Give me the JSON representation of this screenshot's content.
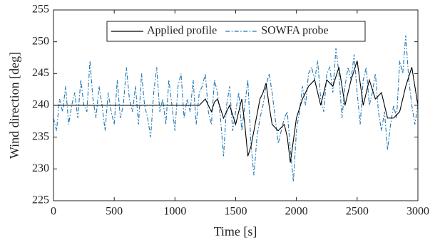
{
  "chart_data": {
    "type": "line",
    "xlabel": "Time [s]",
    "ylabel": "Wind direction [deg]",
    "xlim": [
      0,
      3000
    ],
    "xticks": [
      0,
      500,
      1000,
      1500,
      2000,
      2500,
      3000
    ],
    "ylim": [
      225,
      255
    ],
    "yticks": [
      225,
      230,
      235,
      240,
      245,
      250,
      255
    ],
    "legend": "top",
    "x": [
      0,
      25,
      50,
      75,
      100,
      125,
      150,
      175,
      200,
      225,
      250,
      275,
      300,
      325,
      350,
      375,
      400,
      425,
      450,
      475,
      500,
      525,
      550,
      575,
      600,
      625,
      650,
      675,
      700,
      725,
      750,
      775,
      800,
      825,
      850,
      875,
      900,
      925,
      950,
      975,
      1000,
      1025,
      1050,
      1075,
      1100,
      1125,
      1150,
      1175,
      1200,
      1225,
      1250,
      1275,
      1300,
      1325,
      1350,
      1375,
      1400,
      1425,
      1450,
      1475,
      1500,
      1525,
      1550,
      1575,
      1600,
      1625,
      1650,
      1675,
      1700,
      1725,
      1750,
      1775,
      1800,
      1825,
      1850,
      1875,
      1900,
      1925,
      1950,
      1975,
      2000,
      2025,
      2050,
      2075,
      2100,
      2125,
      2150,
      2175,
      2200,
      2225,
      2250,
      2275,
      2300,
      2325,
      2350,
      2375,
      2400,
      2425,
      2450,
      2475,
      2500,
      2525,
      2550,
      2575,
      2600,
      2625,
      2650,
      2675,
      2700,
      2725,
      2750,
      2775,
      2800,
      2825,
      2850,
      2875,
      2900,
      2925,
      2950,
      2975,
      3000
    ],
    "series": [
      {
        "name": "Applied profile",
        "color": "#000000",
        "dash": "solid",
        "values": [
          240,
          240,
          240,
          240,
          240,
          240,
          240,
          240,
          240,
          240,
          240,
          240,
          240,
          240,
          240,
          240,
          240,
          240,
          240,
          240,
          240,
          240,
          240,
          240,
          240,
          240,
          240,
          240,
          240,
          240,
          240,
          240,
          240,
          240,
          240,
          240,
          240,
          240,
          240,
          240,
          240,
          240,
          240,
          240,
          240,
          240,
          240,
          240,
          240,
          240.5,
          241,
          240,
          239,
          240.5,
          241,
          239.5,
          238,
          239,
          240,
          238.5,
          237,
          239,
          241,
          237,
          232,
          233.5,
          236,
          238.5,
          241,
          242,
          243.5,
          240,
          237,
          236.5,
          236,
          236.5,
          237,
          235,
          231,
          234.5,
          238,
          239.5,
          241,
          242,
          243,
          243.5,
          244,
          242,
          240,
          242,
          244,
          243.5,
          243,
          244.5,
          246,
          243,
          240,
          242,
          244,
          245.5,
          247,
          243.5,
          240,
          242,
          244,
          242.5,
          241,
          241.5,
          242,
          240,
          238,
          238,
          238,
          238.5,
          239,
          241,
          243,
          244.5,
          246,
          243,
          240
        ]
      },
      {
        "name": "SOWFA probe",
        "color": "#1f77b4",
        "dash": "dashdot",
        "values": [
          238,
          236,
          241,
          239,
          243,
          237,
          240,
          242,
          238,
          244,
          240,
          239,
          247,
          241,
          238,
          243,
          240,
          236,
          242,
          239,
          237,
          244,
          238,
          240,
          246,
          241,
          239,
          243,
          237,
          245,
          240,
          238,
          235,
          242,
          246,
          239,
          241,
          237,
          244,
          240,
          236,
          243,
          245,
          238,
          241,
          239,
          244,
          237,
          242,
          243,
          245,
          239,
          237,
          244,
          242,
          238,
          232,
          240,
          243,
          236,
          239,
          242,
          236,
          240,
          244,
          234,
          229,
          235,
          238,
          240,
          243,
          245,
          242,
          238,
          234,
          236,
          238,
          239,
          233,
          228,
          236,
          239,
          243,
          240,
          245,
          246,
          244,
          247,
          241,
          239,
          245,
          246,
          242,
          249,
          245,
          238,
          243,
          246,
          244,
          248,
          242,
          237,
          244,
          246,
          240,
          242,
          245,
          239,
          236,
          239,
          233,
          237,
          240,
          238,
          247,
          245,
          251,
          244,
          240,
          237,
          240
        ]
      }
    ]
  }
}
